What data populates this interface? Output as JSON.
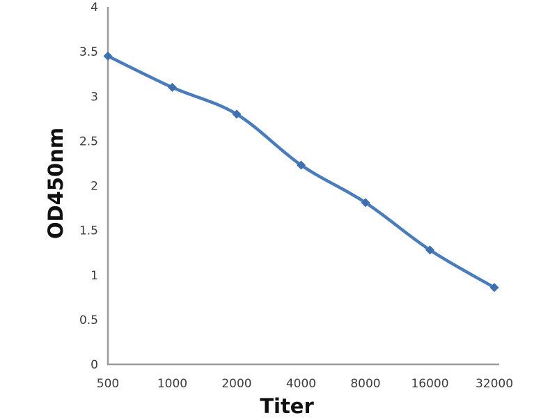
{
  "chart_data": {
    "type": "line",
    "title": "",
    "xlabel": "Titer",
    "ylabel": "OD450nm",
    "categories": [
      "500",
      "1000",
      "2000",
      "4000",
      "8000",
      "16000",
      "32000"
    ],
    "series": [
      {
        "name": "OD450nm",
        "values": [
          3.45,
          3.1,
          2.8,
          2.23,
          1.81,
          1.28,
          0.86
        ]
      }
    ],
    "ylim": [
      0,
      4
    ],
    "ytick_step": 0.5,
    "ytick_labels": [
      "0",
      "0.5",
      "1",
      "1.5",
      "2",
      "2.5",
      "3",
      "3.5",
      "4"
    ],
    "grid": false,
    "legend": false,
    "marker": "diamond",
    "line_color": "#4A7CBC",
    "marker_color": "#3E6FAF",
    "axis_color": "#9B9B9B",
    "tick_label_color": "#3D3D3D",
    "axis_title_color": "#111111"
  }
}
